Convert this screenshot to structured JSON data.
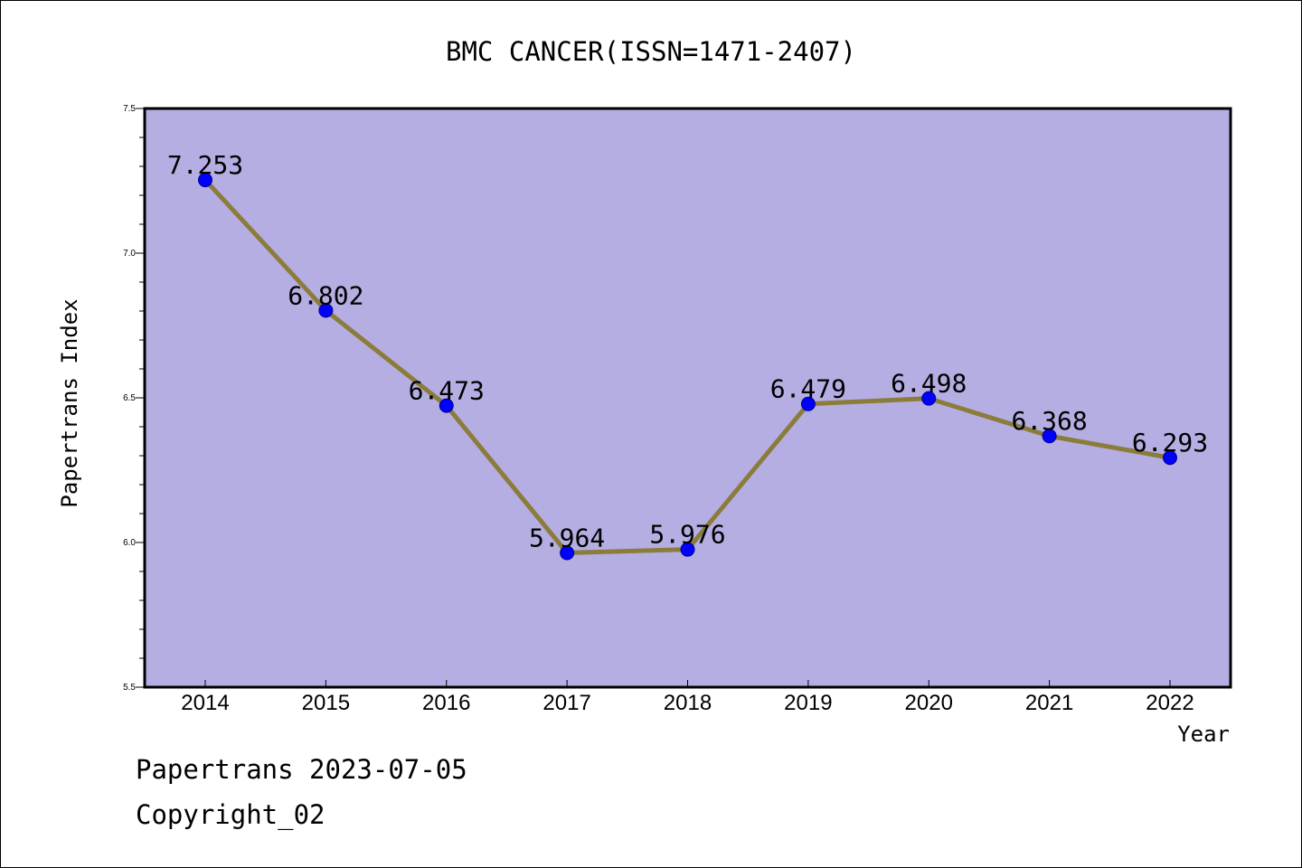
{
  "chart_data": {
    "type": "line",
    "title": "BMC CANCER(ISSN=1471-2407)",
    "xlabel": "Year",
    "ylabel": "Papertrans Index",
    "x": [
      "2014",
      "2015",
      "2016",
      "2017",
      "2018",
      "2019",
      "2020",
      "2021",
      "2022"
    ],
    "values": [
      7.253,
      6.802,
      6.473,
      5.964,
      5.976,
      6.479,
      6.498,
      6.368,
      6.293
    ],
    "data_labels": [
      "7.253",
      "6.802",
      "6.473",
      "5.964",
      "5.976",
      "6.479",
      "6.498",
      "6.368",
      "6.293"
    ],
    "ylim": [
      5.5,
      7.5
    ],
    "yticks": [
      "5.5",
      "6.0",
      "6.5",
      "7.0",
      "7.5"
    ],
    "grid": false,
    "colors": {
      "plot_background": "#b5aee3",
      "line": "#8b7c3c",
      "marker": "#0000ff"
    }
  },
  "footer": {
    "line1": "Papertrans 2023-07-05",
    "line2": "Copyright_02"
  }
}
